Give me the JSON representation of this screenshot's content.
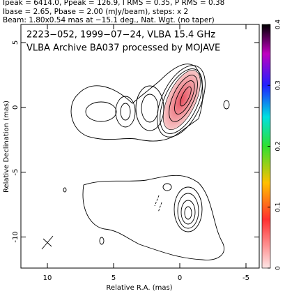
{
  "chart_data": {
    "type": "contour",
    "header": [
      "Ipeak = 6414.0, Ppeak = 126.9, I RMS = 0.35, P RMS = 0.38",
      "Ibase = 2.65, Pbase = 2.00 (mJy/beam), steps: x 2",
      "Beam: 1.80x0.54 mas at −15.1 deg., Nat. Wgt. (no taper)"
    ],
    "title": [
      "2223−052, 1999−07−24, VLBA 15.4 GHz",
      "VLBA Archive BA037 processed by MOJAVE"
    ],
    "xlabel": "Relative R.A. (mas)",
    "ylabel": "Relative Declination (mas)",
    "xlim": [
      12,
      -6
    ],
    "ylim": [
      -12.4,
      6.4
    ],
    "xticks": [
      10,
      5,
      0,
      -5
    ],
    "yticks": [
      5,
      0,
      -5,
      -10
    ],
    "colorbar": {
      "lim": [
        0,
        0.4
      ],
      "ticks": [
        0,
        0.1,
        0.2,
        0.3,
        0.4
      ]
    }
  }
}
